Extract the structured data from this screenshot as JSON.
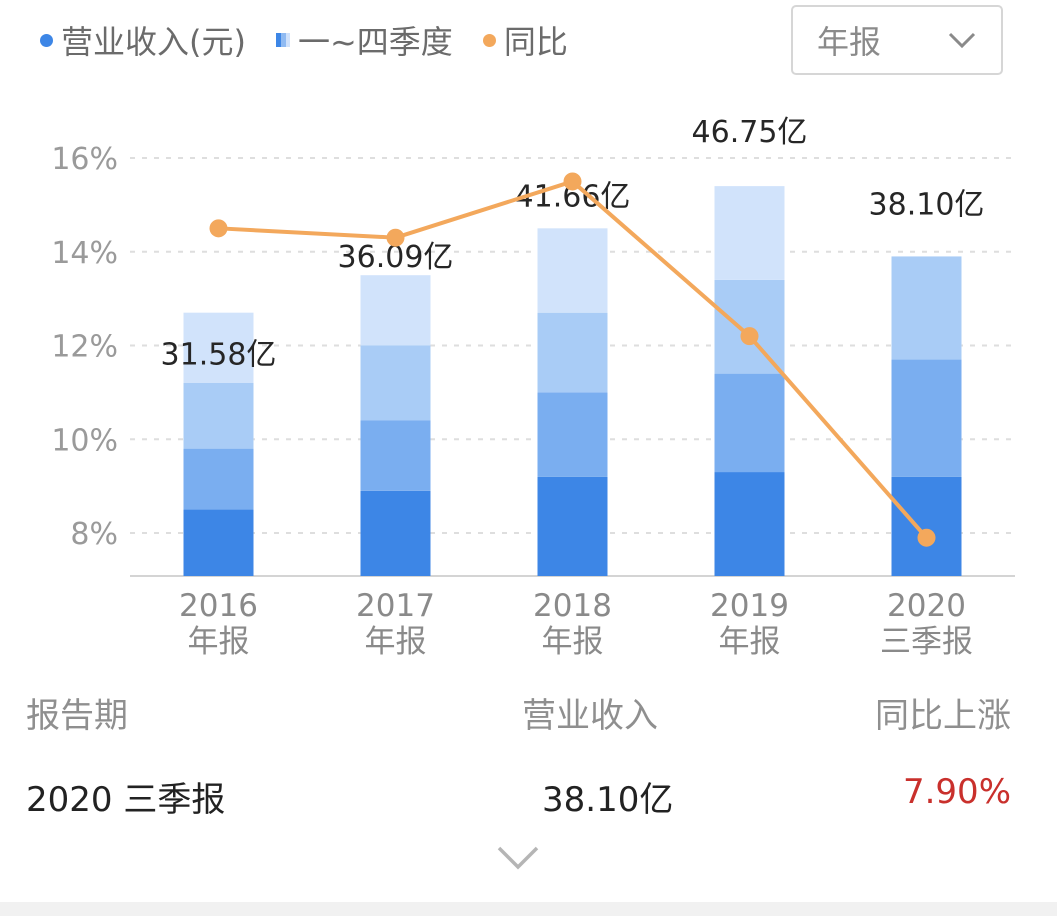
{
  "legend": {
    "revenue": "营业收入(元)",
    "quarters": "一~四季度",
    "yoy": "同比"
  },
  "dropdown": {
    "selected": "年报"
  },
  "chart_data": {
    "type": "bar",
    "categories": [
      [
        "2016",
        "年报"
      ],
      [
        "2017",
        "年报"
      ],
      [
        "2018",
        "年报"
      ],
      [
        "2019",
        "年报"
      ],
      [
        "2020",
        "三季报"
      ]
    ],
    "series": [
      {
        "name": "一~四季度",
        "type": "bar",
        "stacked_quarter_levels_on_pct_axis": [
          [
            8.5,
            9.8,
            11.2,
            12.7
          ],
          [
            8.9,
            10.4,
            12.0,
            13.5
          ],
          [
            9.2,
            11.0,
            12.7,
            14.5
          ],
          [
            9.3,
            11.4,
            13.4,
            15.4
          ],
          [
            9.2,
            11.7,
            13.9
          ]
        ],
        "colors": [
          "#3d86e6",
          "#7aaef0",
          "#a9ccf6",
          "#d1e3fb"
        ]
      },
      {
        "name": "同比",
        "type": "line",
        "values": [
          14.5,
          14.3,
          15.5,
          12.2,
          7.9
        ],
        "color": "#f3a85c"
      }
    ],
    "value_labels": [
      "31.58亿",
      "36.09亿",
      "41.66亿",
      "46.75亿",
      "38.10亿"
    ],
    "yticks": [
      "16%",
      "14%",
      "12%",
      "10%",
      "8%"
    ],
    "ylim": [
      7.1,
      16.5
    ],
    "grid": true,
    "legend_position": "top-left"
  },
  "table": {
    "headers": [
      "报告期",
      "营业收入",
      "同比上涨"
    ],
    "row": {
      "period": "2020 三季报",
      "revenue": "38.10亿",
      "yoy": "7.90%"
    }
  }
}
